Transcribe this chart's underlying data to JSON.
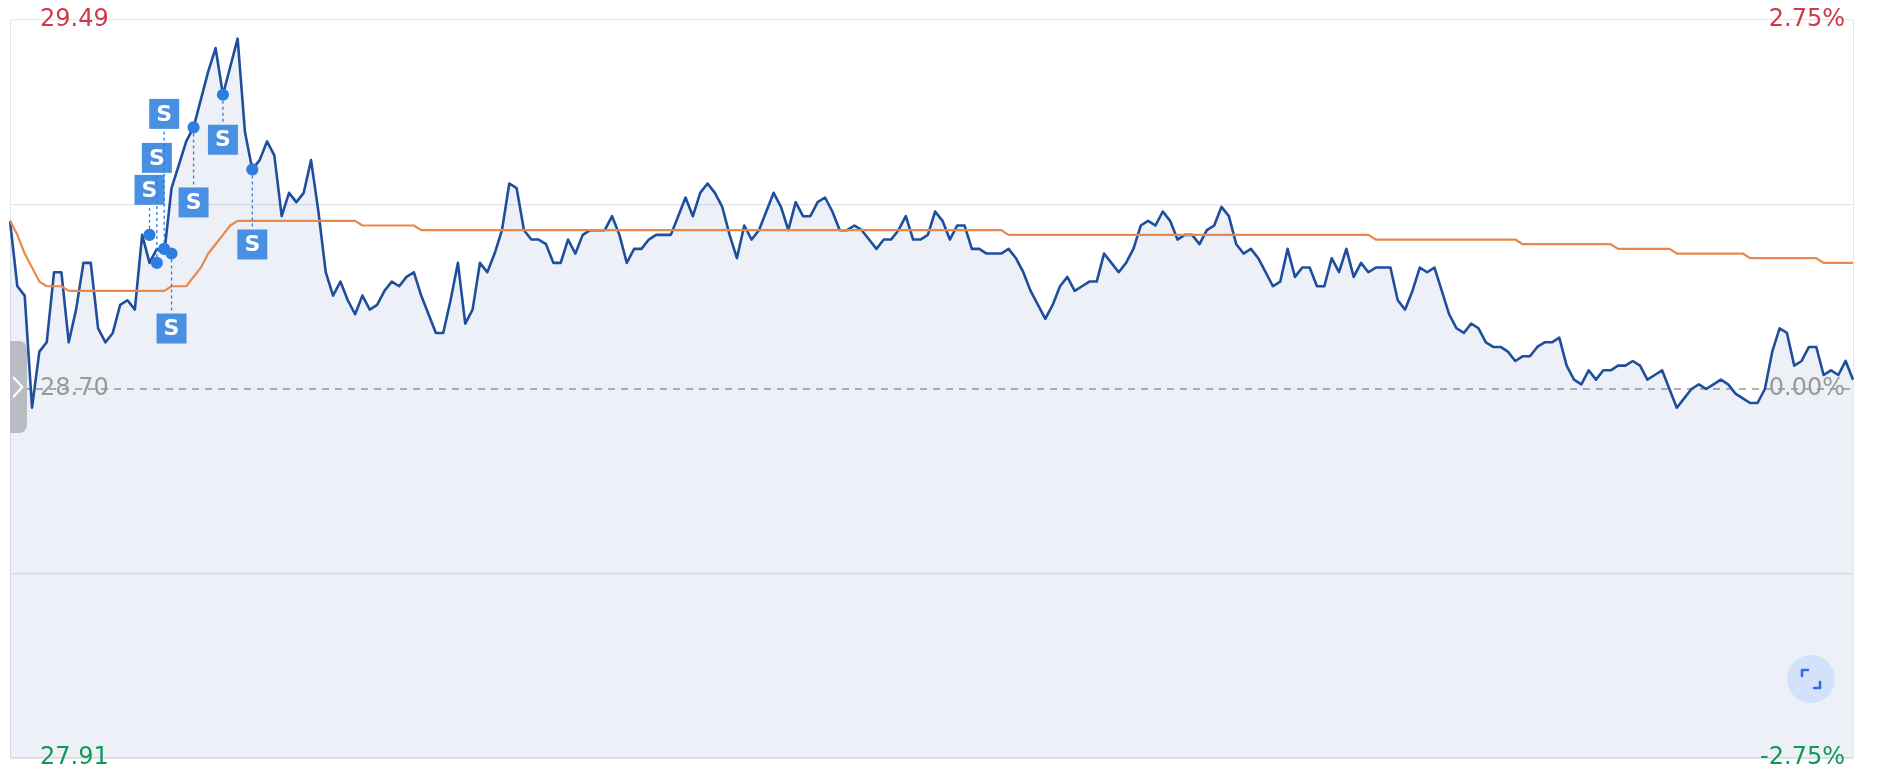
{
  "chart_data": {
    "type": "area",
    "categories": [
      null,
      null,
      null,
      null,
      null,
      null,
      null,
      null,
      null,
      null,
      null,
      null,
      null,
      null,
      null,
      null,
      null,
      null,
      null,
      null,
      null,
      null,
      null,
      null,
      null,
      null,
      null,
      null,
      null,
      null,
      null,
      null,
      null,
      null,
      null,
      null,
      null,
      null,
      null,
      null,
      null,
      null,
      null,
      null,
      null,
      null,
      null,
      null,
      null,
      null,
      null,
      null,
      null,
      null,
      null,
      null,
      null,
      null,
      null,
      null,
      null,
      null,
      null,
      null,
      null,
      null,
      null,
      null,
      null,
      null,
      null,
      null,
      null,
      null,
      null,
      null,
      null,
      null,
      null,
      null,
      null,
      null,
      null,
      null,
      null,
      null,
      null,
      null,
      null,
      null,
      null,
      null,
      null,
      null,
      null,
      null,
      null,
      null,
      null,
      null,
      null,
      null,
      null,
      null,
      null,
      null,
      null,
      null,
      null,
      null,
      null,
      null,
      null,
      null,
      null,
      null,
      null,
      null,
      null,
      null,
      null,
      null,
      null,
      null,
      null,
      null,
      null,
      null,
      null,
      null,
      null,
      null,
      null,
      null,
      null,
      null,
      null,
      null,
      null,
      null,
      null,
      null,
      null,
      null,
      null,
      null,
      null,
      null,
      null,
      null,
      null,
      null,
      null,
      null,
      null,
      null,
      null,
      null,
      null,
      null,
      null,
      null,
      null,
      null,
      null,
      null,
      null,
      null,
      null,
      null,
      null,
      null,
      null,
      null,
      null,
      null,
      null,
      null,
      null,
      null,
      null,
      null,
      null,
      null,
      null,
      null,
      null,
      null,
      null,
      null,
      null,
      null,
      null,
      null,
      null,
      null,
      null,
      null,
      null,
      null,
      null,
      null,
      null,
      null,
      null,
      null,
      null,
      null,
      null,
      null,
      null,
      null,
      null,
      null,
      null,
      null,
      null,
      null,
      null,
      null,
      null,
      null,
      null,
      null,
      null,
      null,
      null,
      null,
      null,
      null,
      null,
      null,
      null,
      null,
      null,
      null,
      null,
      null,
      null,
      null,
      null,
      null,
      null,
      null,
      null,
      null,
      null,
      null,
      null,
      null,
      null,
      null
    ],
    "series": [
      {
        "color": "#1f4e9c",
        "values": [
          29.06,
          28.92,
          28.9,
          28.66,
          28.78,
          28.8,
          28.95,
          28.95,
          28.8,
          28.87,
          28.97,
          28.97,
          28.83,
          28.8,
          28.82,
          28.88,
          28.89,
          28.87,
          29.03,
          28.97,
          29.0,
          28.99,
          29.13,
          29.18,
          29.23,
          29.26,
          29.32,
          29.38,
          29.43,
          29.33,
          29.39,
          29.45,
          29.25,
          29.17,
          29.19,
          29.23,
          29.2,
          29.07,
          29.12,
          29.1,
          29.12,
          29.19,
          29.08,
          28.95,
          28.9,
          28.93,
          28.89,
          28.86,
          28.9,
          28.87,
          28.88,
          28.91,
          28.93,
          28.92,
          28.94,
          28.95,
          28.9,
          28.86,
          28.82,
          28.82,
          28.89,
          28.97,
          28.84,
          28.87,
          28.97,
          28.95,
          28.99,
          29.04,
          29.14,
          29.13,
          29.04,
          29.02,
          29.02,
          29.01,
          28.97,
          28.97,
          29.02,
          28.99,
          29.03,
          29.04,
          29.04,
          29.04,
          29.07,
          29.03,
          28.97,
          29.0,
          29.0,
          29.02,
          29.03,
          29.03,
          29.03,
          29.07,
          29.11,
          29.07,
          29.12,
          29.14,
          29.12,
          29.09,
          29.03,
          28.98,
          29.05,
          29.02,
          29.04,
          29.08,
          29.12,
          29.09,
          29.04,
          29.1,
          29.07,
          29.07,
          29.1,
          29.11,
          29.08,
          29.04,
          29.04,
          29.05,
          29.04,
          29.02,
          29.0,
          29.02,
          29.02,
          29.04,
          29.07,
          29.02,
          29.02,
          29.03,
          29.08,
          29.06,
          29.02,
          29.05,
          29.05,
          29.0,
          29.0,
          28.99,
          28.99,
          28.99,
          29.0,
          28.98,
          28.95,
          28.91,
          28.88,
          28.85,
          28.88,
          28.92,
          28.94,
          28.91,
          28.92,
          28.93,
          28.93,
          28.99,
          28.97,
          28.95,
          28.97,
          29.0,
          29.05,
          29.06,
          29.05,
          29.08,
          29.06,
          29.02,
          29.03,
          29.03,
          29.01,
          29.04,
          29.05,
          29.09,
          29.07,
          29.01,
          28.99,
          29.0,
          28.98,
          28.95,
          28.92,
          28.93,
          29.0,
          28.94,
          28.96,
          28.96,
          28.92,
          28.92,
          28.98,
          28.95,
          29.0,
          28.94,
          28.97,
          28.95,
          28.96,
          28.96,
          28.96,
          28.89,
          28.87,
          28.91,
          28.96,
          28.95,
          28.96,
          28.91,
          28.86,
          28.83,
          28.82,
          28.84,
          28.83,
          28.8,
          28.79,
          28.79,
          28.78,
          28.76,
          28.77,
          28.77,
          28.79,
          28.8,
          28.8,
          28.81,
          28.75,
          28.72,
          28.71,
          28.74,
          28.72,
          28.74,
          28.74,
          28.75,
          28.75,
          28.76,
          28.75,
          28.72,
          28.73,
          28.74,
          28.7,
          28.66,
          28.68,
          28.7,
          28.71,
          28.7,
          28.71,
          28.72,
          28.71,
          28.69,
          28.68,
          28.67,
          28.67,
          28.7,
          28.78,
          28.83,
          28.82,
          28.75,
          28.76,
          28.79,
          28.79,
          28.73,
          28.74,
          28.73,
          28.76,
          28.72
        ]
      },
      {
        "type": "line",
        "color": "#e8884a",
        "values": [
          29.06,
          29.03,
          28.99,
          28.96,
          28.93,
          28.92,
          28.92,
          28.92,
          28.91,
          28.91,
          28.91,
          28.91,
          28.91,
          28.91,
          28.91,
          28.91,
          28.91,
          28.91,
          28.91,
          28.91,
          28.91,
          28.91,
          28.92,
          28.92,
          28.92,
          28.94,
          28.96,
          28.99,
          29.01,
          29.03,
          29.05,
          29.06,
          29.06,
          29.06,
          29.06,
          29.06,
          29.06,
          29.06,
          29.06,
          29.06,
          29.06,
          29.06,
          29.06,
          29.06,
          29.06,
          29.06,
          29.06,
          29.06,
          29.05,
          29.05,
          29.05,
          29.05,
          29.05,
          29.05,
          29.05,
          29.05,
          29.04,
          29.04,
          29.04,
          29.04,
          29.04,
          29.04,
          29.04,
          29.04,
          29.04,
          29.04,
          29.04,
          29.04,
          29.04,
          29.04,
          29.04,
          29.04,
          29.04,
          29.04,
          29.04,
          29.04,
          29.04,
          29.04,
          29.04,
          29.04,
          29.04,
          29.04,
          29.04,
          29.04,
          29.04,
          29.04,
          29.04,
          29.04,
          29.04,
          29.04,
          29.04,
          29.04,
          29.04,
          29.04,
          29.04,
          29.04,
          29.04,
          29.04,
          29.04,
          29.04,
          29.04,
          29.04,
          29.04,
          29.04,
          29.04,
          29.04,
          29.04,
          29.04,
          29.04,
          29.04,
          29.04,
          29.04,
          29.04,
          29.04,
          29.04,
          29.04,
          29.04,
          29.04,
          29.04,
          29.04,
          29.04,
          29.04,
          29.04,
          29.04,
          29.04,
          29.04,
          29.04,
          29.04,
          29.04,
          29.04,
          29.04,
          29.04,
          29.04,
          29.04,
          29.04,
          29.04,
          29.03,
          29.03,
          29.03,
          29.03,
          29.03,
          29.03,
          29.03,
          29.03,
          29.03,
          29.03,
          29.03,
          29.03,
          29.03,
          29.03,
          29.03,
          29.03,
          29.03,
          29.03,
          29.03,
          29.03,
          29.03,
          29.03,
          29.03,
          29.03,
          29.03,
          29.03,
          29.03,
          29.03,
          29.03,
          29.03,
          29.03,
          29.03,
          29.03,
          29.03,
          29.03,
          29.03,
          29.03,
          29.03,
          29.03,
          29.03,
          29.03,
          29.03,
          29.03,
          29.03,
          29.03,
          29.03,
          29.03,
          29.03,
          29.03,
          29.03,
          29.02,
          29.02,
          29.02,
          29.02,
          29.02,
          29.02,
          29.02,
          29.02,
          29.02,
          29.02,
          29.02,
          29.02,
          29.02,
          29.02,
          29.02,
          29.02,
          29.02,
          29.02,
          29.02,
          29.02,
          29.01,
          29.01,
          29.01,
          29.01,
          29.01,
          29.01,
          29.01,
          29.01,
          29.01,
          29.01,
          29.01,
          29.01,
          29.01,
          29.0,
          29.0,
          29.0,
          29.0,
          29.0,
          29.0,
          29.0,
          29.0,
          28.99,
          28.99,
          28.99,
          28.99,
          28.99,
          28.99,
          28.99,
          28.99,
          28.99,
          28.99,
          28.98,
          28.98,
          28.98,
          28.98,
          28.98,
          28.98,
          28.98,
          28.98,
          28.98,
          28.98,
          28.97,
          28.97,
          28.97,
          28.97,
          28.97
        ]
      },
      {
        "type": "scatter",
        "color": "#2f7de1",
        "marker": "circle",
        "values": [
          null,
          null,
          null,
          null,
          null,
          null,
          null,
          null,
          null,
          null,
          null,
          null,
          null,
          null,
          null,
          null,
          null,
          null,
          null,
          29.03,
          28.97,
          29.0,
          28.99,
          null,
          null,
          29.26,
          null,
          null,
          null,
          29.33,
          null,
          null,
          null,
          29.17,
          null,
          null,
          null,
          null,
          null,
          null,
          null,
          null,
          null,
          null,
          null,
          null,
          null,
          null,
          null,
          null,
          null,
          null,
          null,
          null,
          null,
          null,
          null,
          null,
          null,
          null,
          null,
          null,
          null,
          null,
          null,
          null,
          null,
          null,
          null,
          null,
          null,
          null,
          null,
          null,
          null,
          null,
          null,
          null,
          null,
          null,
          null,
          null,
          null,
          null,
          null,
          null,
          null,
          null,
          null,
          null,
          null,
          null,
          null,
          null,
          null,
          null,
          null,
          null,
          null,
          null,
          null,
          null,
          null,
          null,
          null,
          null,
          null,
          null,
          null,
          null,
          null,
          null,
          null,
          null,
          null,
          null,
          null,
          null,
          null,
          null,
          null,
          null,
          null,
          null,
          null,
          null,
          null,
          null,
          null,
          null,
          null,
          null,
          null,
          null,
          null,
          null,
          null,
          null,
          null,
          null,
          null,
          null,
          null,
          null,
          null,
          null,
          null,
          null,
          null,
          null,
          null,
          null,
          null,
          null,
          null,
          null,
          null,
          null,
          null,
          null,
          null,
          null,
          null,
          null,
          null,
          null,
          null,
          null,
          null,
          null,
          null,
          null,
          null,
          null,
          null,
          null,
          null,
          null,
          null,
          null,
          null,
          null,
          null,
          null,
          null,
          null,
          null,
          null,
          null,
          null,
          null,
          null,
          null,
          null,
          null,
          null,
          null,
          null,
          null,
          null,
          null,
          null,
          null,
          null,
          null,
          null,
          null,
          null,
          null,
          null,
          null,
          null,
          null,
          null,
          null,
          null,
          null,
          null,
          null,
          null,
          null,
          null,
          null,
          null,
          null,
          null,
          null,
          null,
          null,
          null,
          null,
          null,
          null,
          null,
          null,
          null,
          null,
          null,
          null,
          null,
          null,
          null,
          null,
          null,
          null,
          null,
          null,
          null,
          null,
          null,
          null,
          null
        ]
      }
    ],
    "ylim": [
      27.91,
      29.49
    ],
    "yticks": [
      27.91,
      {
        "value": 28.305,
        "label": null
      },
      {
        "value": 28.7,
        "label": "28.70"
      },
      {
        "value": 29.095,
        "label": null
      },
      29.49
    ],
    "y2lim": [
      -2.75,
      2.75
    ],
    "y2ticks": [
      {
        "value": -2.75,
        "label": "-2.75%"
      },
      {
        "value": 0,
        "label": "0.00%"
      },
      {
        "value": 2.75,
        "label": "2.75%"
      }
    ],
    "ref_lines": [
      {
        "axis": "y",
        "value": 28.7,
        "color": "#9a9a9a",
        "line_style": "dashed"
      }
    ],
    "annotations": [
      "S",
      "S",
      "S",
      "S",
      "S",
      "S",
      "S"
    ],
    "tick_labels": "y",
    "grid": "y",
    "legend": false
  }
}
